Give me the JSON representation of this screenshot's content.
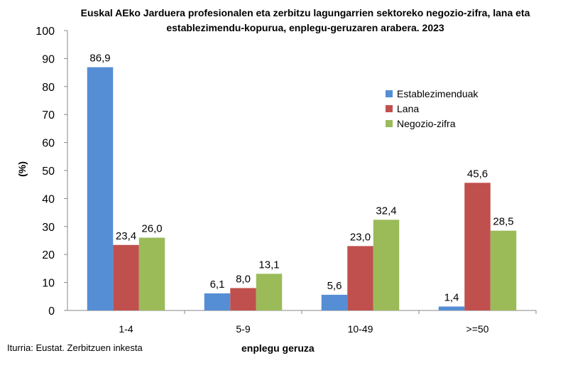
{
  "chart_data": {
    "type": "bar",
    "title": "Euskal AEko Jarduera profesionalen eta zerbitzu lagungarrien sektoreko negozio-zifra, lana eta establezimendu-kopurua, enplegu-geruzaren arabera. 2023",
    "xlabel": "enplegu geruza",
    "ylabel": "(%)",
    "ylim": [
      0,
      100
    ],
    "yticks": [
      "0",
      "10",
      "20",
      "30",
      "40",
      "50",
      "60",
      "70",
      "80",
      "90",
      "100"
    ],
    "categories": [
      "1-4",
      "5-9",
      "10-49",
      ">=50"
    ],
    "series": [
      {
        "name": "Establezimenduak",
        "color": "#558ED5",
        "values": [
          86.9,
          6.1,
          5.6,
          1.4
        ],
        "labels": [
          "86,9",
          "6,1",
          "5,6",
          "1,4"
        ]
      },
      {
        "name": "Lana",
        "color": "#C0504D",
        "values": [
          23.4,
          8.0,
          23.0,
          45.6
        ],
        "labels": [
          "23,4",
          "8,0",
          "23,0",
          "45,6"
        ]
      },
      {
        "name": "Negozio-zifra",
        "color": "#9BBB59",
        "values": [
          26.0,
          13.1,
          32.4,
          28.5
        ],
        "labels": [
          "26,0",
          "13,1",
          "32,4",
          "28,5"
        ]
      }
    ],
    "legend_position": "right",
    "source": "Iturria: Eustat. Zerbitzuen inkesta"
  }
}
